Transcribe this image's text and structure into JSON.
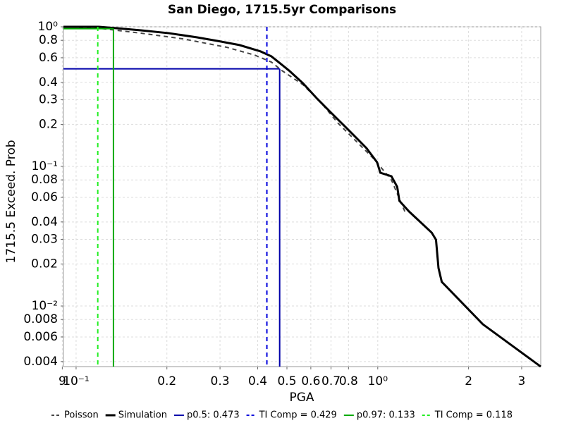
{
  "chart_data": {
    "type": "line",
    "title": "San Diego, 1715.5yr Comparisons",
    "x_label": "PGA",
    "y_label": "1715.5 Exceed. Prob",
    "log_x": true,
    "log_y": true,
    "grid": true,
    "xlim": [
      0.0908,
      3.47
    ],
    "ylim": [
      0.00368,
      1
    ],
    "xticks": [
      {
        "value": 0.09,
        "label": "9"
      },
      {
        "value": 0.1,
        "label": "10⁻¹"
      },
      0.2,
      0.3,
      0.4,
      0.5,
      0.6,
      0.7,
      0.8,
      {
        "value": 1,
        "label": "10⁰"
      },
      2,
      3
    ],
    "yticks": [
      {
        "value": 1,
        "label": "10⁰"
      },
      0.8,
      0.6,
      0.4,
      0.3,
      0.2,
      {
        "value": 0.1,
        "label": "10⁻¹"
      },
      0.08,
      0.06,
      0.04,
      0.03,
      0.02,
      {
        "value": 0.01,
        "label": "10⁻²"
      },
      0.008,
      0.006,
      0.004
    ],
    "series": [
      {
        "name": "Poisson",
        "color": "#444444",
        "style": "dashed",
        "x": [
          0.0908,
          0.119,
          0.164,
          0.225,
          0.315,
          0.39,
          0.444,
          0.481,
          0.565,
          0.647,
          0.74,
          0.847,
          0.968,
          1.11,
          1.23
        ],
        "values": [
          1,
          0.977,
          0.9,
          0.821,
          0.714,
          0.628,
          0.559,
          0.486,
          0.385,
          0.288,
          0.203,
          0.152,
          0.114,
          0.08,
          0.0475
        ]
      },
      {
        "name": "Simulation",
        "color": "#000000",
        "style": "solid",
        "x": [
          0.0908,
          0.119,
          0.136,
          0.164,
          0.203,
          0.252,
          0.296,
          0.348,
          0.409,
          0.444,
          0.469,
          0.508,
          0.565,
          0.63,
          0.701,
          0.781,
          0.847,
          0.918,
          0.995,
          1.02,
          1.11,
          1.16,
          1.18,
          1.27,
          1.41,
          1.51,
          1.56,
          1.59,
          1.63,
          2.23,
          3.47
        ],
        "values": [
          1,
          1,
          0.977,
          0.943,
          0.9,
          0.84,
          0.79,
          0.74,
          0.666,
          0.614,
          0.559,
          0.486,
          0.394,
          0.305,
          0.242,
          0.192,
          0.161,
          0.135,
          0.107,
          0.09,
          0.085,
          0.0714,
          0.0566,
          0.0475,
          0.0385,
          0.0335,
          0.0298,
          0.0187,
          0.0149,
          0.0074,
          0.00368
        ]
      },
      {
        "name": "p0.5: 0.473",
        "color": "#0000aa",
        "style": "solid",
        "x": 0.473,
        "y": 0.5
      },
      {
        "name": "TI Comp = 0.429",
        "color": "#0000dd",
        "style": "dashed",
        "x": 0.429
      },
      {
        "name": "p0.97: 0.133",
        "color": "#00aa00",
        "style": "solid",
        "x": 0.133,
        "y": 0.97
      },
      {
        "name": "TI Comp = 0.118",
        "color": "#22ee22",
        "style": "dashed",
        "x": 0.118
      }
    ]
  }
}
